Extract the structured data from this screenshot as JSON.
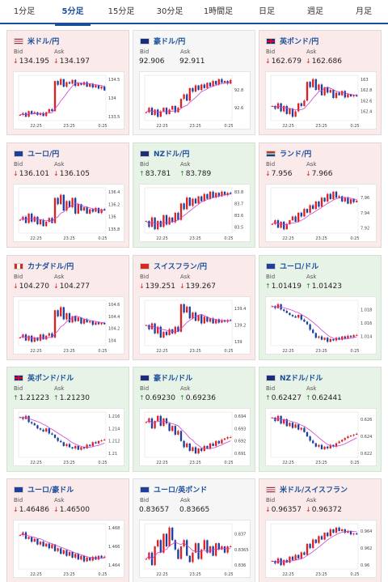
{
  "tabs": [
    {
      "label": "1分足",
      "active": false
    },
    {
      "label": "5分足",
      "active": true
    },
    {
      "label": "15分足",
      "active": false
    },
    {
      "label": "30分足",
      "active": false
    },
    {
      "label": "1時間足",
      "active": false
    },
    {
      "label": "日足",
      "active": false
    },
    {
      "label": "週足",
      "active": false
    },
    {
      "label": "月足",
      "active": false
    }
  ],
  "labels": {
    "bid": "Bid",
    "ask": "Ask"
  },
  "colors": {
    "down_bg": "#fbeaea",
    "up_bg": "#e8f3e8",
    "bull_candle": "#e02020",
    "bear_candle": "#1a3fa0",
    "ma_line": "#d040d0",
    "link": "#1a4f9c"
  },
  "cards": [
    {
      "pair": "米ドル/円",
      "flag": "us",
      "trend": "down",
      "bid_dir": "down",
      "ask_dir": "down",
      "bid": "134.195",
      "ask": "134.197",
      "x_ticks": [
        "22:25",
        "23:25",
        "0:25"
      ],
      "y_ticks": [
        "134.5",
        "134",
        "133.5"
      ],
      "series": [
        133.55,
        133.6,
        133.5,
        133.65,
        133.58,
        133.62,
        133.55,
        133.6,
        133.52,
        133.62,
        133.7,
        133.65,
        134.45,
        134.35,
        134.5,
        134.3,
        134.42,
        134.38,
        134.48,
        134.32,
        134.4,
        134.35,
        134.42,
        134.3,
        134.38,
        134.28,
        134.34,
        134.25,
        134.3,
        134.2
      ]
    },
    {
      "pair": "豪ドル/円",
      "flag": "au",
      "trend": "neutral",
      "bid_dir": "none",
      "ask_dir": "none",
      "bid": "92.906",
      "ask": "92.911",
      "x_ticks": [
        "22:25",
        "23:25",
        "0:25"
      ],
      "y_ticks": [
        "92.8",
        "92.6"
      ],
      "series": [
        92.55,
        92.6,
        92.52,
        92.58,
        92.5,
        92.56,
        92.6,
        92.53,
        92.58,
        92.62,
        92.55,
        92.6,
        92.7,
        92.75,
        92.68,
        92.82,
        92.78,
        92.85,
        92.8,
        92.86,
        92.82,
        92.88,
        92.84,
        92.9,
        92.86,
        92.92,
        92.88,
        92.9,
        92.87,
        92.91
      ]
    },
    {
      "pair": "英ポンド/円",
      "flag": "gb",
      "trend": "down",
      "bid_dir": "down",
      "ask_dir": "down",
      "bid": "162.679",
      "ask": "162.686",
      "x_ticks": [
        "22:25",
        "23:25",
        "0:25"
      ],
      "y_ticks": [
        "163",
        "162.8",
        "162.6",
        "162.4"
      ],
      "series": [
        162.5,
        162.45,
        162.55,
        162.4,
        162.5,
        162.35,
        162.45,
        162.3,
        162.4,
        162.55,
        162.5,
        162.6,
        162.95,
        162.85,
        163.0,
        162.8,
        162.9,
        162.7,
        162.85,
        162.75,
        162.8,
        162.65,
        162.75,
        162.7,
        162.78,
        162.66,
        162.72,
        162.68,
        162.7,
        162.68
      ]
    },
    {
      "pair": "ユーロ/円",
      "flag": "eu",
      "trend": "down",
      "bid_dir": "down",
      "ask_dir": "down",
      "bid": "136.101",
      "ask": "136.105",
      "x_ticks": [
        "22:25",
        "23:25",
        "0:25"
      ],
      "y_ticks": [
        "136.4",
        "136.2",
        "136",
        "135.8"
      ],
      "series": [
        135.95,
        136.0,
        135.9,
        136.05,
        135.92,
        136.0,
        135.88,
        135.95,
        135.85,
        135.92,
        135.98,
        135.9,
        136.3,
        136.2,
        136.35,
        136.1,
        136.25,
        136.15,
        136.3,
        136.05,
        136.2,
        136.1,
        136.15,
        136.05,
        136.12,
        136.08,
        136.14,
        136.06,
        136.12,
        136.1
      ]
    },
    {
      "pair": "NZドル/円",
      "flag": "nz",
      "trend": "up",
      "bid_dir": "up",
      "ask_dir": "up",
      "bid": "83.781",
      "ask": "83.789",
      "x_ticks": [
        "22:25",
        "23:25",
        "0:25"
      ],
      "y_ticks": [
        "83.8",
        "83.7",
        "83.6",
        "83.5"
      ],
      "series": [
        83.55,
        83.5,
        83.58,
        83.48,
        83.55,
        83.5,
        83.6,
        83.52,
        83.58,
        83.54,
        83.62,
        83.56,
        83.7,
        83.65,
        83.75,
        83.68,
        83.74,
        83.7,
        83.76,
        83.72,
        83.78,
        83.74,
        83.8,
        83.75,
        83.79,
        83.76,
        83.8,
        83.77,
        83.79,
        83.78
      ]
    },
    {
      "pair": "ランド/円",
      "flag": "za",
      "trend": "down",
      "bid_dir": "down",
      "ask_dir": "down",
      "bid": "7.956",
      "ask": "7.966",
      "x_ticks": [
        "22:25",
        "23:25",
        "0:25"
      ],
      "y_ticks": [
        "7.96",
        "7.94",
        "7.92"
      ],
      "series": [
        7.925,
        7.93,
        7.92,
        7.928,
        7.918,
        7.925,
        7.93,
        7.935,
        7.928,
        7.94,
        7.935,
        7.945,
        7.94,
        7.95,
        7.945,
        7.955,
        7.948,
        7.96,
        7.955,
        7.965,
        7.958,
        7.968,
        7.96,
        7.962,
        7.955,
        7.96,
        7.952,
        7.958,
        7.954,
        7.956
      ]
    },
    {
      "pair": "カナダドル/円",
      "flag": "ca",
      "trend": "down",
      "bid_dir": "down",
      "ask_dir": "down",
      "bid": "104.270",
      "ask": "104.277",
      "x_ticks": [
        "22:25",
        "23:25",
        "0:25"
      ],
      "y_ticks": [
        "104.6",
        "104.4",
        "104.2",
        "104"
      ],
      "series": [
        104.05,
        104.1,
        104.0,
        104.08,
        103.98,
        104.05,
        104.0,
        104.1,
        104.02,
        104.08,
        104.12,
        104.05,
        104.5,
        104.4,
        104.55,
        104.35,
        104.45,
        104.3,
        104.4,
        104.32,
        104.38,
        104.28,
        104.35,
        104.3,
        104.32,
        104.26,
        104.3,
        104.27,
        104.29,
        104.27
      ]
    },
    {
      "pair": "スイスフラン/円",
      "flag": "ch",
      "trend": "down",
      "bid_dir": "down",
      "ask_dir": "down",
      "bid": "139.251",
      "ask": "139.267",
      "x_ticks": [
        "22:25",
        "23:25",
        "0:25"
      ],
      "y_ticks": [
        "139.4",
        "139.2",
        "139"
      ],
      "series": [
        139.2,
        139.15,
        139.22,
        139.1,
        139.18,
        139.05,
        139.12,
        139.08,
        139.15,
        139.1,
        139.18,
        139.12,
        139.45,
        139.35,
        139.42,
        139.28,
        139.35,
        139.25,
        139.32,
        139.22,
        139.3,
        139.24,
        139.28,
        139.22,
        139.27,
        139.23,
        139.26,
        139.24,
        139.26,
        139.25
      ]
    },
    {
      "pair": "ユーロ/ドル",
      "flag": "eu",
      "trend": "up",
      "bid_dir": "up",
      "ask_dir": "up",
      "bid": "1.01419",
      "ask": "1.01423",
      "x_ticks": [
        "22:25",
        "23:25",
        "0:25"
      ],
      "y_ticks": [
        "1.018",
        "1.016",
        "1.014"
      ],
      "series": [
        1.0185,
        1.0182,
        1.0188,
        1.018,
        1.0178,
        1.0175,
        1.0172,
        1.017,
        1.0168,
        1.0172,
        1.0165,
        1.0162,
        1.0158,
        1.015,
        1.0145,
        1.0138,
        1.014,
        1.0135,
        1.0138,
        1.0132,
        1.0136,
        1.0134,
        1.0138,
        1.0135,
        1.014,
        1.0137,
        1.0141,
        1.0139,
        1.0142,
        1.0142
      ]
    },
    {
      "pair": "英ポンド/ドル",
      "flag": "gb",
      "trend": "up",
      "bid_dir": "up",
      "ask_dir": "up",
      "bid": "1.21223",
      "ask": "1.21230",
      "x_ticks": [
        "22:25",
        "23:25",
        "0:25"
      ],
      "y_ticks": [
        "1.216",
        "1.214",
        "1.212",
        "1.21"
      ],
      "series": [
        1.2158,
        1.2155,
        1.216,
        1.215,
        1.2148,
        1.2145,
        1.214,
        1.2138,
        1.2135,
        1.214,
        1.2132,
        1.213,
        1.2125,
        1.212,
        1.2118,
        1.2112,
        1.2115,
        1.211,
        1.2108,
        1.2112,
        1.2106,
        1.211,
        1.2108,
        1.2114,
        1.2112,
        1.2118,
        1.2116,
        1.212,
        1.2121,
        1.2122
      ]
    },
    {
      "pair": "豪ドル/ドル",
      "flag": "au",
      "trend": "up",
      "bid_dir": "up",
      "ask_dir": "up",
      "bid": "0.69230",
      "ask": "0.69236",
      "x_ticks": [
        "22:25",
        "23:25",
        "0:25"
      ],
      "y_ticks": [
        "0.694",
        "0.693",
        "0.692",
        "0.691"
      ],
      "series": [
        0.6935,
        0.6938,
        0.693,
        0.6936,
        0.694,
        0.6932,
        0.6938,
        0.6934,
        0.6928,
        0.6932,
        0.6925,
        0.6928,
        0.692,
        0.6915,
        0.6918,
        0.6912,
        0.6915,
        0.691,
        0.6914,
        0.6912,
        0.6916,
        0.6914,
        0.6918,
        0.6916,
        0.692,
        0.6918,
        0.6921,
        0.6922,
        0.6923,
        0.6923
      ]
    },
    {
      "pair": "NZドル/ドル",
      "flag": "nz",
      "trend": "up",
      "bid_dir": "up",
      "ask_dir": "up",
      "bid": "0.62427",
      "ask": "0.62441",
      "x_ticks": [
        "22:25",
        "23:25",
        "0:25"
      ],
      "y_ticks": [
        "0.626",
        "0.624",
        "0.622"
      ],
      "series": [
        0.6262,
        0.6258,
        0.6264,
        0.6255,
        0.626,
        0.6252,
        0.6256,
        0.625,
        0.6254,
        0.6248,
        0.625,
        0.6245,
        0.624,
        0.6235,
        0.6232,
        0.6228,
        0.623,
        0.6225,
        0.6228,
        0.6226,
        0.623,
        0.6228,
        0.6232,
        0.6234,
        0.6236,
        0.6238,
        0.624,
        0.6241,
        0.6242,
        0.6243
      ]
    },
    {
      "pair": "ユーロ/豪ドル",
      "flag": "eu",
      "trend": "down",
      "bid_dir": "down",
      "ask_dir": "down",
      "bid": "1.46486",
      "ask": "1.46500",
      "x_ticks": [
        "22:25",
        "23:25",
        "0:25"
      ],
      "y_ticks": [
        "1.468",
        "1.466",
        "1.464"
      ],
      "series": [
        1.4672,
        1.4675,
        1.4668,
        1.467,
        1.4665,
        1.4668,
        1.4662,
        1.4665,
        1.466,
        1.4663,
        1.4658,
        1.4662,
        1.4655,
        1.4658,
        1.4652,
        1.4656,
        1.465,
        1.4654,
        1.4648,
        1.4652,
        1.4646,
        1.465,
        1.4644,
        1.4648,
        1.4645,
        1.4649,
        1.4646,
        1.465,
        1.4648,
        1.4649
      ]
    },
    {
      "pair": "ユーロ/英ポンド",
      "flag": "eu",
      "trend": "neutral",
      "bid_dir": "none",
      "ask_dir": "none",
      "bid": "0.83657",
      "ask": "0.83665",
      "x_ticks": [
        "22:25",
        "23:25",
        "0:25"
      ],
      "y_ticks": [
        "0.837",
        "0.8365",
        "0.836"
      ],
      "series": [
        0.8362,
        0.8364,
        0.836,
        0.8366,
        0.8368,
        0.8364,
        0.837,
        0.8366,
        0.8372,
        0.8368,
        0.8365,
        0.8362,
        0.8366,
        0.8368,
        0.8363,
        0.8361,
        0.8364,
        0.8367,
        0.8362,
        0.8365,
        0.8368,
        0.8364,
        0.8366,
        0.8363,
        0.8367,
        0.8365,
        0.8366,
        0.8364,
        0.8366,
        0.8366
      ]
    },
    {
      "pair": "米ドル/スイスフラン",
      "flag": "us",
      "trend": "down",
      "bid_dir": "down",
      "ask_dir": "down",
      "bid": "0.96357",
      "ask": "0.96372",
      "x_ticks": [
        "22:25",
        "23:25",
        "0:25"
      ],
      "y_ticks": [
        "0.964",
        "0.962",
        "0.96"
      ],
      "series": [
        0.9605,
        0.9602,
        0.9608,
        0.96,
        0.9606,
        0.9603,
        0.961,
        0.9606,
        0.9612,
        0.9608,
        0.9615,
        0.9612,
        0.9625,
        0.962,
        0.963,
        0.9626,
        0.9634,
        0.963,
        0.9638,
        0.9634,
        0.9642,
        0.9638,
        0.9644,
        0.964,
        0.9642,
        0.9638,
        0.964,
        0.9636,
        0.9637,
        0.9636
      ]
    }
  ]
}
